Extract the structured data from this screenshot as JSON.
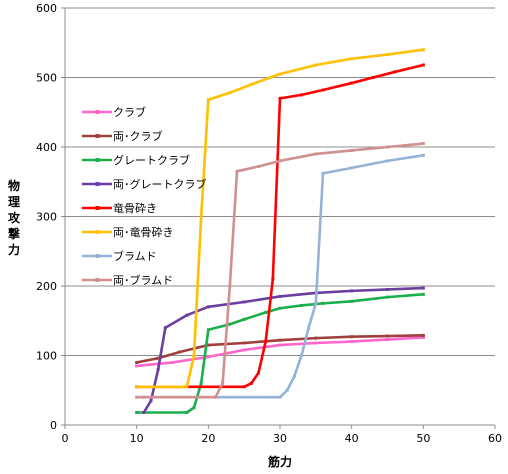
{
  "chart_data": {
    "type": "line",
    "title": "",
    "xlabel": "筋力",
    "ylabel": "物理攻撃力",
    "xlim": [
      0,
      60
    ],
    "ylim": [
      0,
      600
    ],
    "x_ticks": [
      0,
      10,
      20,
      30,
      40,
      50,
      60
    ],
    "y_ticks": [
      0,
      100,
      200,
      300,
      400,
      500,
      600
    ],
    "grid": "horizontal",
    "legend_position": "left-inside",
    "series": [
      {
        "name": "クラブ",
        "color": "#ff66cc",
        "points": [
          [
            10,
            85
          ],
          [
            15,
            90
          ],
          [
            20,
            98
          ],
          [
            25,
            108
          ],
          [
            30,
            115
          ],
          [
            35,
            118
          ],
          [
            40,
            120
          ],
          [
            45,
            123
          ],
          [
            50,
            126
          ]
        ]
      },
      {
        "name": "両･クラブ",
        "color": "#a0403c",
        "points": [
          [
            10,
            90
          ],
          [
            13,
            96
          ],
          [
            16,
            105
          ],
          [
            20,
            115
          ],
          [
            25,
            118
          ],
          [
            30,
            122
          ],
          [
            35,
            125
          ],
          [
            40,
            127
          ],
          [
            45,
            128
          ],
          [
            50,
            129
          ]
        ]
      },
      {
        "name": "グレートクラブ",
        "color": "#1aaf4b",
        "points": [
          [
            10,
            18
          ],
          [
            17,
            18
          ],
          [
            18,
            25
          ],
          [
            19,
            60
          ],
          [
            20,
            137
          ],
          [
            23,
            145
          ],
          [
            25,
            152
          ],
          [
            28,
            162
          ],
          [
            30,
            168
          ],
          [
            33,
            172
          ],
          [
            36,
            175
          ],
          [
            40,
            178
          ],
          [
            45,
            184
          ],
          [
            50,
            188
          ]
        ]
      },
      {
        "name": "両･グレートクラブ",
        "color": "#6b3fa0",
        "points": [
          [
            11,
            18
          ],
          [
            12,
            35
          ],
          [
            13,
            80
          ],
          [
            14,
            140
          ],
          [
            17,
            158
          ],
          [
            20,
            170
          ],
          [
            25,
            177
          ],
          [
            30,
            185
          ],
          [
            35,
            190
          ],
          [
            40,
            193
          ],
          [
            45,
            195
          ],
          [
            50,
            197
          ]
        ]
      },
      {
        "name": "竜骨砕き",
        "color": "#ff0000",
        "points": [
          [
            10,
            55
          ],
          [
            25,
            55
          ],
          [
            26,
            60
          ],
          [
            27,
            75
          ],
          [
            28,
            120
          ],
          [
            29,
            210
          ],
          [
            30,
            470
          ],
          [
            33,
            475
          ],
          [
            36,
            482
          ],
          [
            40,
            492
          ],
          [
            43,
            500
          ],
          [
            46,
            508
          ],
          [
            50,
            518
          ]
        ]
      },
      {
        "name": "両･竜骨砕き",
        "color": "#ffc000",
        "points": [
          [
            10,
            55
          ],
          [
            17,
            55
          ],
          [
            18,
            100
          ],
          [
            19,
            300
          ],
          [
            20,
            468
          ],
          [
            23,
            478
          ],
          [
            26,
            490
          ],
          [
            30,
            505
          ],
          [
            35,
            518
          ],
          [
            40,
            527
          ],
          [
            45,
            533
          ],
          [
            50,
            540
          ]
        ]
      },
      {
        "name": "ブラムド",
        "color": "#95b3d7",
        "points": [
          [
            11,
            40
          ],
          [
            30,
            40
          ],
          [
            31,
            50
          ],
          [
            32,
            70
          ],
          [
            33,
            100
          ],
          [
            34,
            140
          ],
          [
            35,
            175
          ],
          [
            36,
            362
          ],
          [
            40,
            370
          ],
          [
            45,
            380
          ],
          [
            50,
            388
          ]
        ]
      },
      {
        "name": "両･ブラムド",
        "color": "#d09090",
        "points": [
          [
            10,
            40
          ],
          [
            21,
            40
          ],
          [
            22,
            60
          ],
          [
            23,
            200
          ],
          [
            24,
            365
          ],
          [
            27,
            372
          ],
          [
            30,
            380
          ],
          [
            35,
            390
          ],
          [
            40,
            395
          ],
          [
            45,
            400
          ],
          [
            50,
            405
          ]
        ]
      }
    ]
  }
}
